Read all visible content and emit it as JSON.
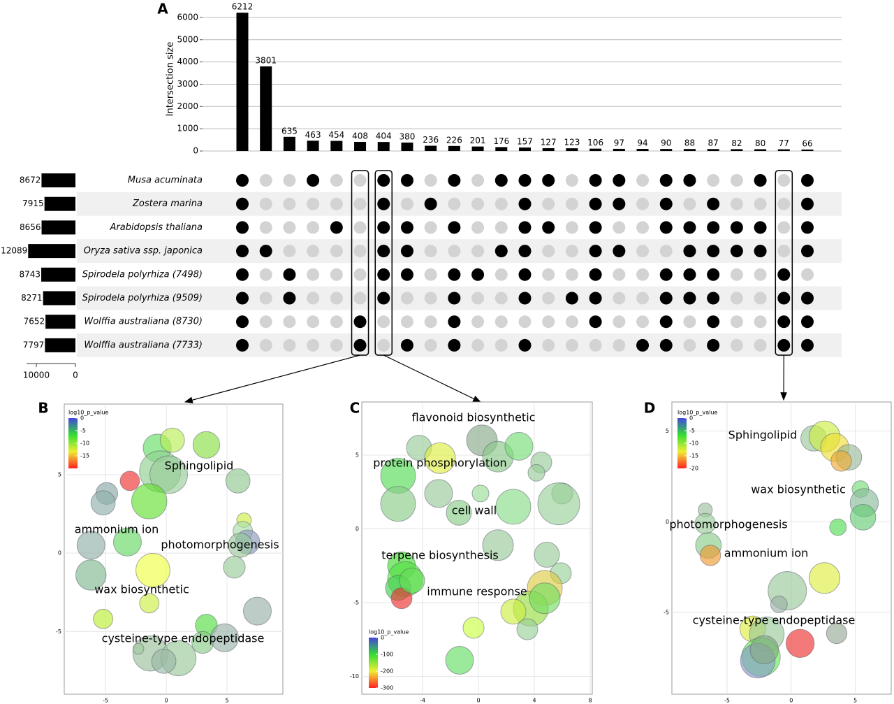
{
  "chart_data": [
    {
      "type": "upset",
      "panel_label": "A",
      "ylabel": "Intersection size",
      "values": [
        6212,
        3801,
        635,
        463,
        454,
        408,
        404,
        380,
        236,
        226,
        201,
        176,
        157,
        127,
        123,
        106,
        97,
        94,
        90,
        88,
        87,
        82,
        80,
        77,
        66
      ],
      "ylim": [
        0,
        6500
      ],
      "yticks": [
        0,
        1000,
        2000,
        3000,
        4000,
        5000,
        6000
      ],
      "grid": true,
      "color": "#000000",
      "sets": [
        "Musa acuminata",
        "Zostera marina",
        "Arabidopsis thaliana",
        "Oryza sativa ssp. japonica",
        "Spirodela polyrhiza (7498)",
        "Spirodela polyrhiza (9509)",
        "Wolffia australiana (8730)",
        "Wolffia australiana (7733)"
      ],
      "set_sizes": [
        8672,
        7915,
        8656,
        12089,
        8743,
        8271,
        7652,
        7797
      ],
      "set_size_xlim": [
        0,
        12500
      ],
      "set_size_xticks": [
        10000,
        0
      ],
      "matrix": [
        [
          1,
          0,
          0,
          1,
          0,
          0,
          1,
          1,
          0,
          1,
          0,
          1,
          1,
          1,
          0,
          1,
          1,
          0,
          1,
          1,
          0,
          0,
          1,
          0,
          1
        ],
        [
          1,
          0,
          0,
          0,
          0,
          0,
          1,
          0,
          1,
          0,
          0,
          0,
          1,
          0,
          0,
          1,
          1,
          0,
          1,
          0,
          1,
          0,
          0,
          0,
          1
        ],
        [
          1,
          0,
          0,
          0,
          1,
          0,
          1,
          1,
          0,
          1,
          0,
          0,
          1,
          1,
          0,
          1,
          0,
          0,
          1,
          1,
          1,
          1,
          1,
          0,
          1
        ],
        [
          1,
          1,
          0,
          0,
          0,
          0,
          1,
          1,
          0,
          0,
          0,
          1,
          1,
          0,
          0,
          1,
          1,
          0,
          0,
          1,
          1,
          1,
          1,
          0,
          1
        ],
        [
          1,
          0,
          1,
          0,
          0,
          0,
          1,
          1,
          0,
          1,
          1,
          0,
          1,
          0,
          0,
          1,
          0,
          0,
          1,
          1,
          1,
          0,
          0,
          1,
          0
        ],
        [
          1,
          0,
          1,
          0,
          0,
          0,
          1,
          0,
          0,
          1,
          0,
          0,
          1,
          0,
          1,
          1,
          0,
          0,
          1,
          1,
          1,
          0,
          0,
          1,
          1
        ],
        [
          1,
          0,
          0,
          0,
          0,
          1,
          0,
          0,
          0,
          1,
          0,
          0,
          0,
          0,
          0,
          1,
          0,
          0,
          1,
          0,
          1,
          0,
          0,
          1,
          1
        ],
        [
          1,
          0,
          0,
          0,
          0,
          1,
          0,
          1,
          0,
          1,
          0,
          0,
          1,
          0,
          0,
          0,
          0,
          1,
          1,
          0,
          1,
          0,
          0,
          1,
          1
        ]
      ],
      "dot_colors": [
        "#d3d3d3",
        "#000000"
      ],
      "highlight_columns": [
        5,
        6,
        23
      ]
    },
    {
      "type": "bubble",
      "panel_label": "B",
      "xlim": [
        -8.4,
        9.6
      ],
      "ylim": [
        -9.0,
        9.5
      ],
      "xticks": [
        -5,
        0,
        5
      ],
      "yticks": [
        -5,
        0,
        5
      ],
      "x": [
        -0.75,
        0.5,
        3.3,
        -0.5,
        0.2,
        -1.4,
        -3.0,
        -4.9,
        -5.2,
        5.9,
        -3.2,
        -6.2,
        -6.2,
        -1.1,
        -1.4,
        -5.2,
        6.4,
        6.3,
        6.7,
        6.1,
        5.6,
        7.5,
        3.3,
        3.0,
        4.8,
        -1.3,
        1.0,
        -0.2,
        -2.3
      ],
      "y": [
        6.7,
        7.2,
        6.9,
        5.2,
        5.0,
        3.3,
        4.6,
        3.8,
        3.2,
        4.6,
        0.7,
        0.5,
        -1.4,
        -1.1,
        -3.2,
        -4.2,
        2.1,
        1.4,
        0.7,
        0.5,
        -0.9,
        -3.7,
        -4.6,
        -5.7,
        -5.4,
        -6.4,
        -6.7,
        -6.9,
        -6.1
      ],
      "size": [
        1.15,
        1.0,
        1.1,
        1.7,
        1.55,
        1.45,
        0.8,
        0.9,
        1.0,
        1.0,
        1.15,
        1.15,
        1.25,
        1.4,
        0.8,
        0.8,
        0.6,
        0.8,
        1.0,
        1.0,
        0.9,
        1.15,
        0.9,
        0.9,
        1.15,
        1.45,
        1.45,
        1.0,
        0.45
      ],
      "colors": [
        "#66dd66",
        "#b8ee55",
        "#88e044",
        "#8fcf8f",
        "#99cc99",
        "#66e033",
        "#ee3333",
        "#8aa8a8",
        "#90b0aa",
        "#90c890",
        "#66d866",
        "#90b0a8",
        "#80b890",
        "#eeff44",
        "#ccee44",
        "#bbee33",
        "#ccee44",
        "#aaddaa",
        "#8899bb",
        "#99c899",
        "#99cc99",
        "#99b0a8",
        "#55dd44",
        "#88cc88",
        "#99b4a8",
        "#99c099",
        "#99c899",
        "#99b8a8",
        "#a0c8a0"
      ],
      "colorbar": {
        "title": "log10_p_value",
        "lim": [
          0,
          -20
        ],
        "ticks": [
          0,
          -5,
          -10,
          -15
        ],
        "colors": [
          "#4444dd",
          "#33dd33",
          "#eeee33",
          "#ff2222"
        ]
      },
      "annotations": [
        "Sphingolipid",
        "ammonium ion",
        "photomorphogenesis",
        "wax biosynthetic",
        "cysteine-type endopeptidase"
      ]
    },
    {
      "type": "bubble",
      "panel_label": "C",
      "xlim": [
        -8.35,
        8.15
      ],
      "ylim": [
        -11.2,
        8.6
      ],
      "xticks": [
        -4,
        0,
        4,
        8
      ],
      "yticks": [
        -10,
        -5,
        0,
        5
      ],
      "x": [
        -4.25,
        -2.75,
        -5.75,
        -5.75,
        -2.85,
        0.25,
        1.4,
        2.9,
        4.5,
        4.15,
        6.0,
        5.75,
        -1.4,
        0.15,
        2.5,
        1.4,
        4.9,
        5.9,
        -5.5,
        -5.25,
        -5.75,
        -5.5,
        -4.75,
        4.75,
        3.75,
        4.75,
        2.5,
        3.5,
        -0.35,
        -1.35
      ],
      "y": [
        5.5,
        4.8,
        3.6,
        1.7,
        2.4,
        6.0,
        4.9,
        5.6,
        4.5,
        3.8,
        2.4,
        1.7,
        1.1,
        2.4,
        1.5,
        -1.1,
        -1.75,
        -3.0,
        -2.5,
        -3.4,
        -4.0,
        -4.7,
        -3.5,
        -4.0,
        -5.4,
        -4.7,
        -5.6,
        -6.8,
        -6.7,
        -8.9
      ],
      "size": [
        0.9,
        1.1,
        1.25,
        1.25,
        1.0,
        1.1,
        1.1,
        1.0,
        0.75,
        0.6,
        0.75,
        1.5,
        0.9,
        0.6,
        1.25,
        1.1,
        0.9,
        0.75,
        1.0,
        1.25,
        0.9,
        0.75,
        0.9,
        1.25,
        1.25,
        1.1,
        0.9,
        0.75,
        0.75,
        1.0
      ],
      "colors": [
        "#99cc99",
        "#ddee44",
        "#55dd55",
        "#88cc88",
        "#99c899",
        "#88aa88",
        "#88c888",
        "#77dd77",
        "#99cc99",
        "#99cc99",
        "#99cc99",
        "#99d099",
        "#88cc88",
        "#99dd99",
        "#88dd88",
        "#99c899",
        "#99cc99",
        "#99d099",
        "#44dd33",
        "#55e044",
        "#44cc55",
        "#ee3333",
        "#66dd55",
        "#ddcc44",
        "#99dd44",
        "#77dd66",
        "#ccee44",
        "#99d099",
        "#ccff44",
        "#66dd66"
      ],
      "colorbar": {
        "title": "log10_p_value",
        "lim": [
          0,
          -300
        ],
        "ticks": [
          0,
          -100,
          -200,
          -300
        ],
        "colors": [
          "#4444dd",
          "#33dd33",
          "#eeee33",
          "#ff2222"
        ]
      },
      "annotations": [
        "flavonoid biosynthetic",
        "protein phosphorylation",
        "cell wall",
        "terpene biosynthesis",
        "immune response"
      ]
    },
    {
      "type": "bubble",
      "panel_label": "D",
      "xlim": [
        -9.3,
        7.8
      ],
      "ylim": [
        -9.5,
        6.6
      ],
      "xticks": [
        -5,
        0,
        5
      ],
      "yticks": [
        -5,
        0,
        5
      ],
      "x": [
        1.75,
        2.6,
        3.4,
        4.5,
        3.9,
        5.4,
        5.7,
        5.6,
        3.65,
        -6.7,
        -6.7,
        -6.45,
        -6.3,
        2.6,
        -0.3,
        -0.95,
        3.55,
        0.7,
        -3.0,
        -1.9,
        -2.35,
        -2.6,
        -2.1
      ],
      "y": [
        4.6,
        4.7,
        4.1,
        3.55,
        3.35,
        1.8,
        1.05,
        0.25,
        -0.3,
        0.65,
        -0.1,
        -1.3,
        -1.85,
        -3.1,
        -3.8,
        -4.55,
        -6.15,
        -6.7,
        -5.9,
        -6.2,
        -7.45,
        -7.65,
        -7.05
      ],
      "size": [
        1.0,
        1.2,
        1.1,
        1.0,
        0.8,
        0.65,
        1.1,
        1.0,
        0.65,
        0.55,
        0.8,
        1.0,
        0.8,
        1.2,
        1.5,
        0.65,
        0.8,
        1.1,
        1.0,
        1.35,
        1.5,
        1.35,
        1.1
      ],
      "colors": [
        "#99c899",
        "#ccee44",
        "#eedd33",
        "#99bb99",
        "#eeaa33",
        "#77dd77",
        "#88bb99",
        "#66cc77",
        "#55dd55",
        "#a0c0a0",
        "#99cc99",
        "#88cc88",
        "#ee9933",
        "#ddee44",
        "#99c899",
        "#99b0a8",
        "#99aa99",
        "#ee3333",
        "#ddee44",
        "#99c899",
        "#66ee55",
        "#8899cc",
        "#88a888"
      ],
      "colorbar": {
        "title": "log10_p_value",
        "lim": [
          0,
          -20
        ],
        "ticks": [
          0,
          -5,
          -10,
          -15,
          -20
        ],
        "colors": [
          "#4444dd",
          "#33dd33",
          "#eeee33",
          "#ff2222"
        ]
      },
      "annotations": [
        "Sphingolipid",
        "wax biosynthetic",
        "photomorphogenesis",
        "ammonium ion",
        "cysteine-type endopeptidase"
      ]
    }
  ]
}
